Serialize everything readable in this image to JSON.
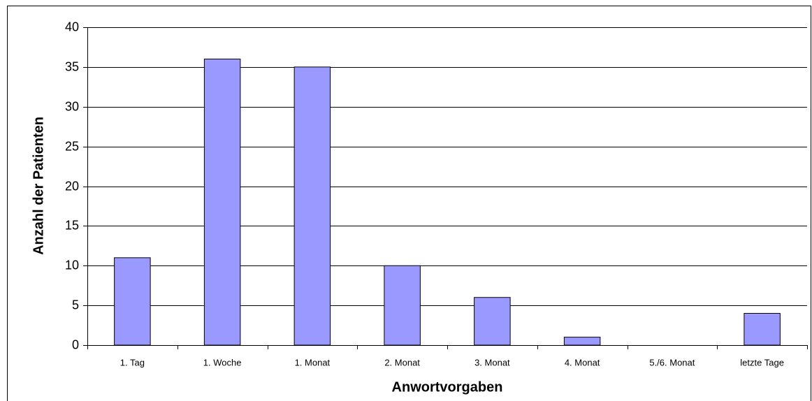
{
  "chart_data": {
    "type": "bar",
    "x_label": "Anwortvorgaben",
    "y_label": "Anzahl der Patienten",
    "categories": [
      "1. Tag",
      "1. Woche",
      "1. Monat",
      "2. Monat",
      "3. Monat",
      "4. Monat",
      "5./6. Monat",
      "letzte Tage"
    ],
    "values": [
      11,
      36,
      35,
      10,
      6,
      1,
      0,
      4
    ],
    "color": "#9999ff",
    "ylim": [
      0,
      40
    ],
    "yticks": [
      0,
      5,
      10,
      15,
      20,
      25,
      30,
      35,
      40
    ],
    "grid": true
  }
}
